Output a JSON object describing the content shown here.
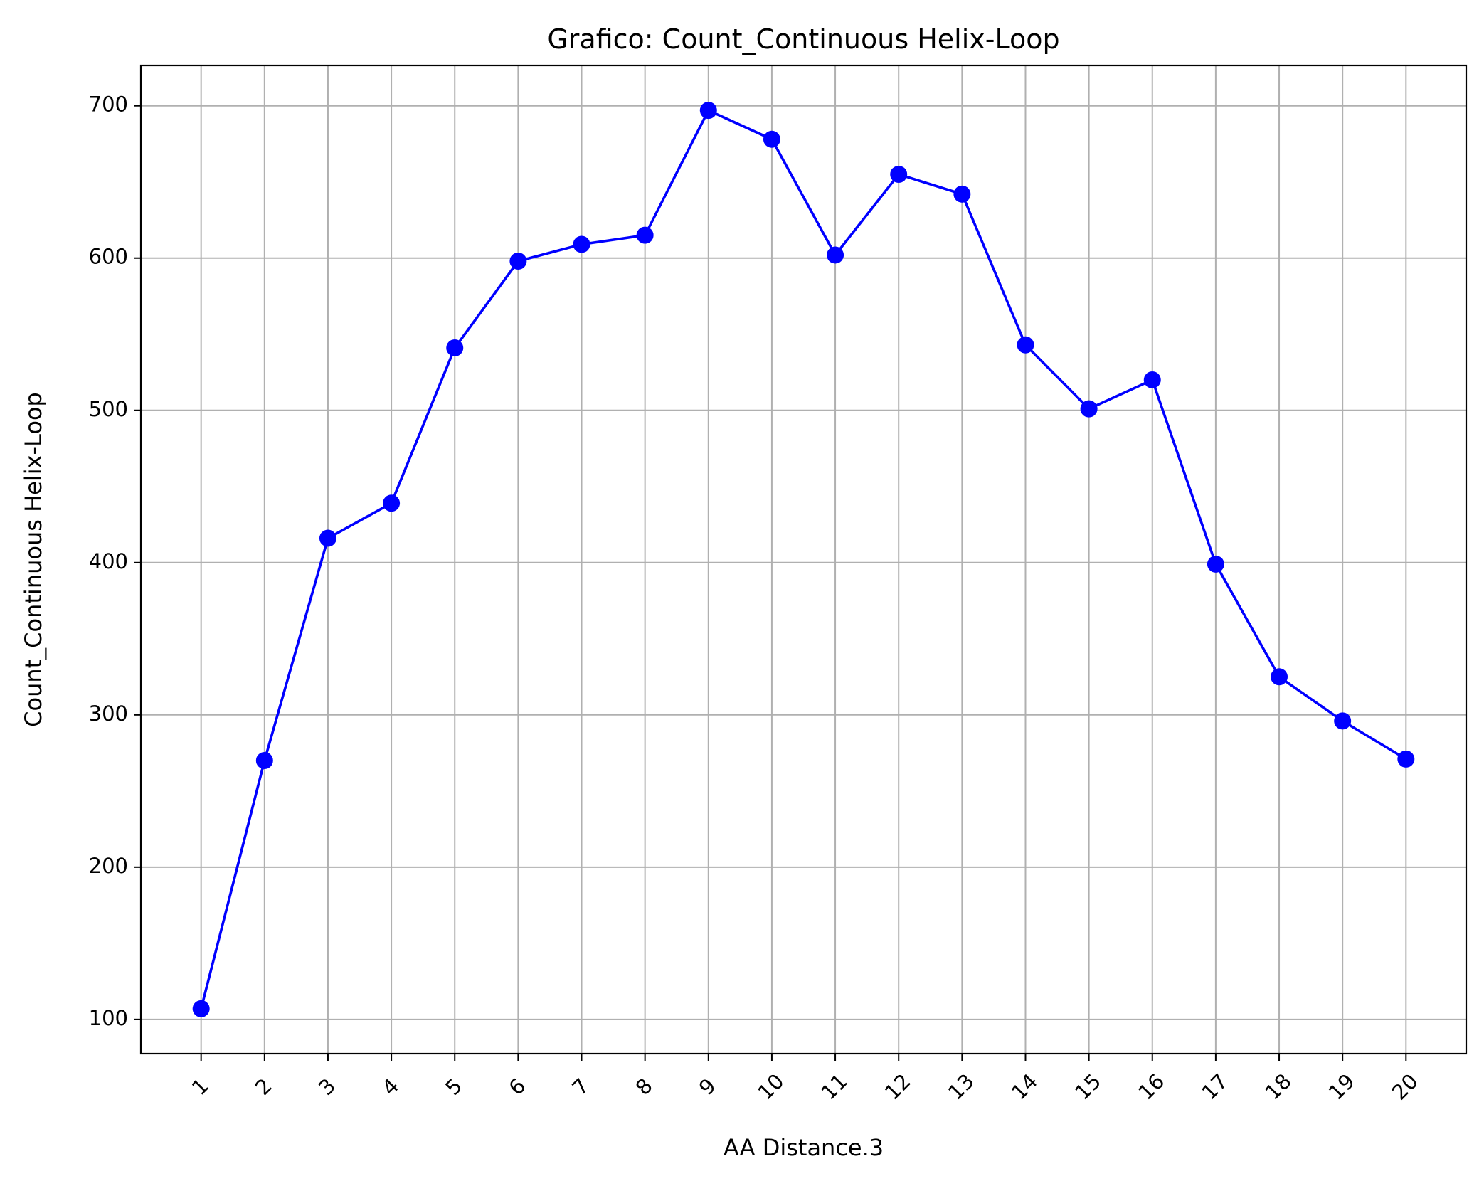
{
  "chart_data": {
    "type": "line",
    "title": "Grafico: Count_Continuous Helix-Loop",
    "xlabel": "AA Distance.3",
    "ylabel": "Count_Continuous Helix-Loop",
    "x": [
      1,
      2,
      3,
      4,
      5,
      6,
      7,
      8,
      9,
      10,
      11,
      12,
      13,
      14,
      15,
      16,
      17,
      18,
      19,
      20
    ],
    "x_tick_labels": [
      "1",
      "2",
      "3",
      "4",
      "5",
      "6",
      "7",
      "8",
      "9",
      "10",
      "11",
      "12",
      "13",
      "14",
      "15",
      "16",
      "17",
      "18",
      "19",
      "20"
    ],
    "x_tick_rotation_deg": 45,
    "series": [
      {
        "values": [
          107,
          270,
          416,
          439,
          541,
          598,
          609,
          615,
          697,
          678,
          602,
          655,
          642,
          543,
          501,
          520,
          399,
          325,
          296,
          271
        ],
        "color": "#0000ff",
        "marker": "circle"
      }
    ],
    "y_ticks": [
      100,
      200,
      300,
      400,
      500,
      600,
      700
    ],
    "y_tick_labels": [
      "100",
      "200",
      "300",
      "400",
      "500",
      "600",
      "700"
    ],
    "xlim": [
      0.05,
      20.95
    ],
    "ylim": [
      77.5,
      726.5
    ],
    "grid": true,
    "legend": "none"
  }
}
